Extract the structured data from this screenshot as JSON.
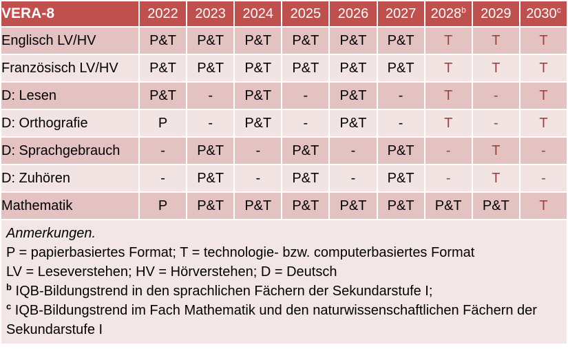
{
  "colors": {
    "header_bg": "#c0504d",
    "band_dark": "#e3c2c1",
    "band_light": "#f2e4e3",
    "notes_bg": "#f2e7e6",
    "red_text": "#a1413f",
    "header_text": "#ffffff"
  },
  "table": {
    "corner_label": "VERA-8",
    "columns": [
      {
        "label": "2022",
        "sup": ""
      },
      {
        "label": "2023",
        "sup": ""
      },
      {
        "label": "2024",
        "sup": ""
      },
      {
        "label": "2025",
        "sup": ""
      },
      {
        "label": "2026",
        "sup": ""
      },
      {
        "label": "2027",
        "sup": ""
      },
      {
        "label": "2028",
        "sup": "b"
      },
      {
        "label": "2029",
        "sup": ""
      },
      {
        "label": "2030",
        "sup": "c"
      }
    ],
    "rows": [
      {
        "label": "Englisch LV/HV",
        "cells": [
          {
            "text": "P&T",
            "red": false
          },
          {
            "text": "P&T",
            "red": false
          },
          {
            "text": "P&T",
            "red": false
          },
          {
            "text": "P&T",
            "red": false
          },
          {
            "text": "P&T",
            "red": false
          },
          {
            "text": "P&T",
            "red": false
          },
          {
            "text": "T",
            "red": true
          },
          {
            "text": "T",
            "red": true
          },
          {
            "text": "T",
            "red": true
          }
        ]
      },
      {
        "label": "Französisch LV/HV",
        "cells": [
          {
            "text": "P&T",
            "red": false
          },
          {
            "text": "P&T",
            "red": false
          },
          {
            "text": "P&T",
            "red": false
          },
          {
            "text": "P&T",
            "red": false
          },
          {
            "text": "P&T",
            "red": false
          },
          {
            "text": "P&T",
            "red": false
          },
          {
            "text": "T",
            "red": true
          },
          {
            "text": "T",
            "red": true
          },
          {
            "text": "T",
            "red": true
          }
        ]
      },
      {
        "label": "D: Lesen",
        "cells": [
          {
            "text": "P&T",
            "red": false
          },
          {
            "text": "-",
            "red": false
          },
          {
            "text": "P&T",
            "red": false
          },
          {
            "text": "-",
            "red": false
          },
          {
            "text": "P&T",
            "red": false
          },
          {
            "text": "-",
            "red": false
          },
          {
            "text": "T",
            "red": true
          },
          {
            "text": "-",
            "red": true
          },
          {
            "text": "T",
            "red": true
          }
        ]
      },
      {
        "label": "D: Orthografie",
        "cells": [
          {
            "text": "P",
            "red": false
          },
          {
            "text": "-",
            "red": false
          },
          {
            "text": "P&T",
            "red": false
          },
          {
            "text": "-",
            "red": false
          },
          {
            "text": "P&T",
            "red": false
          },
          {
            "text": "-",
            "red": false
          },
          {
            "text": "T",
            "red": true
          },
          {
            "text": "-",
            "red": true
          },
          {
            "text": "T",
            "red": true
          }
        ]
      },
      {
        "label": "D: Sprachgebrauch",
        "cells": [
          {
            "text": "-",
            "red": false
          },
          {
            "text": "P&T",
            "red": false
          },
          {
            "text": "-",
            "red": false
          },
          {
            "text": "P&T",
            "red": false
          },
          {
            "text": "-",
            "red": false
          },
          {
            "text": "P&T",
            "red": false
          },
          {
            "text": "-",
            "red": true
          },
          {
            "text": "T",
            "red": true
          },
          {
            "text": "-",
            "red": true
          }
        ]
      },
      {
        "label": "D: Zuhören",
        "cells": [
          {
            "text": "-",
            "red": false
          },
          {
            "text": "P&T",
            "red": false
          },
          {
            "text": "-",
            "red": false
          },
          {
            "text": "P&T",
            "red": false
          },
          {
            "text": "-",
            "red": false
          },
          {
            "text": "P&T",
            "red": false
          },
          {
            "text": "-",
            "red": true
          },
          {
            "text": "T",
            "red": true
          },
          {
            "text": "-",
            "red": true
          }
        ]
      },
      {
        "label": "Mathematik",
        "cells": [
          {
            "text": "P",
            "red": false
          },
          {
            "text": "P&T",
            "red": false
          },
          {
            "text": "P&T",
            "red": false
          },
          {
            "text": "P&T",
            "red": false
          },
          {
            "text": "P&T",
            "red": false
          },
          {
            "text": "P&T",
            "red": false
          },
          {
            "text": "P&T",
            "red": false
          },
          {
            "text": "P&T",
            "red": false
          },
          {
            "text": "T",
            "red": true
          }
        ]
      }
    ]
  },
  "notes": {
    "heading": "Anmerkungen.",
    "lines": [
      {
        "sup": "",
        "text": "P = papierbasiertes Format; T = technologie- bzw. computerbasiertes Format"
      },
      {
        "sup": "",
        "text": "LV = Leseverstehen; HV = Hörverstehen; D = Deutsch"
      },
      {
        "sup": "b",
        "text": "IQB-Bildungstrend in den sprachlichen Fächern der Sekundarstufe I;"
      },
      {
        "sup": "c",
        "text": "IQB-Bildungstrend im Fach Mathematik und den naturwissenschaftlichen Fächern der Sekundarstufe I"
      }
    ]
  }
}
